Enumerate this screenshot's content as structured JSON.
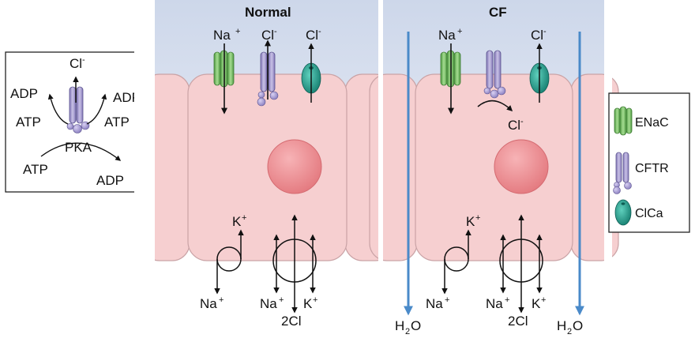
{
  "panels": {
    "normal_title": "Normal",
    "cf_title": "CF"
  },
  "ions": {
    "na": "Na",
    "k": "K",
    "cl": "Cl",
    "plus": "+",
    "minus": "-",
    "two_cl": "2Cl",
    "h": "H",
    "two": "2",
    "o": "O"
  },
  "inset": {
    "cl": "Cl",
    "minus": "-",
    "adp_left": "ADP",
    "adp_right": "ADP",
    "atp_left": "ATP",
    "atp_right": "ATP",
    "pka": "PKA",
    "atp_bottom": "ATP",
    "adp_bottom": "ADP"
  },
  "legend": {
    "items": [
      {
        "label": "ENaC",
        "color": "#7cc76b"
      },
      {
        "label": "CFTR",
        "color": "#a99fd0"
      },
      {
        "label": "ClCa",
        "color": "#1fa08f"
      }
    ]
  },
  "colors": {
    "lumen": "#dfe6f2",
    "cell": "#f6cfd0",
    "cell_border": "#caa3a6",
    "nucleus": "#ec8a8f",
    "water_arrow": "#4a8ac9"
  }
}
